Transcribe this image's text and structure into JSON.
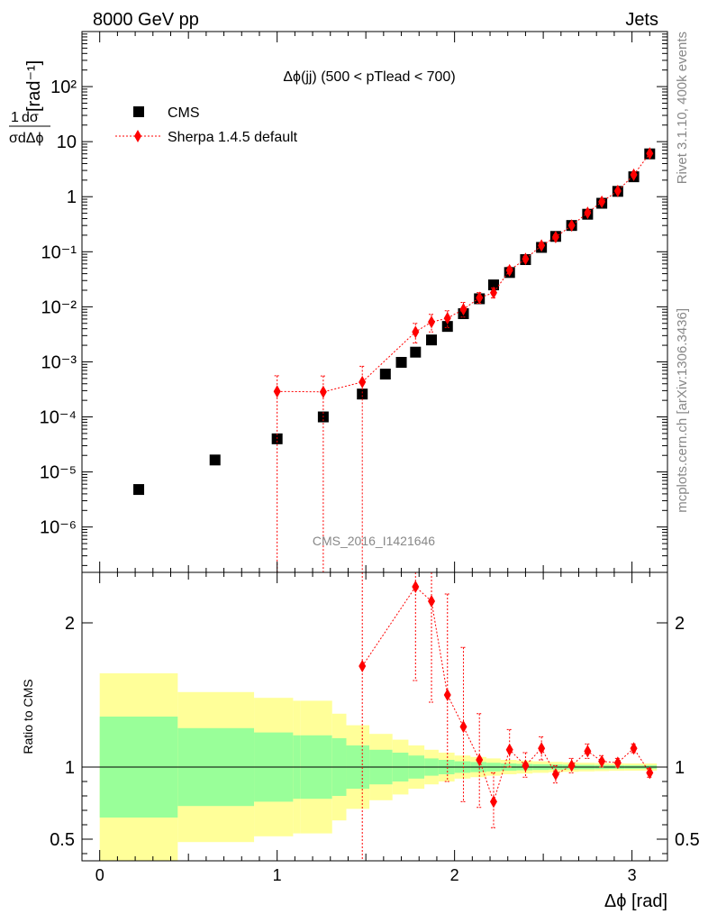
{
  "header": {
    "left": "8000 GeV pp",
    "right": "Jets"
  },
  "side_labels": {
    "rivet": "Rivet 3.1.10,  400k events",
    "mcplots": "mcplots.cern.ch [arXiv:1306.3436]"
  },
  "watermark": "CMS_2016_I1421646",
  "colors": {
    "data": "#000000",
    "mc": "#ff0000",
    "band_inner": "#99ff99",
    "band_outer": "#ffff99"
  },
  "chart_data": [
    {
      "type": "scatter",
      "title": "Δϕ(jj) (500 < pTlead <  700)",
      "ylabel": "1/σ dσ/dΔϕ [rad⁻¹]",
      "y_scale": "log",
      "xlim": [
        -0.1,
        3.2
      ],
      "ylim": [
        1.5e-07,
        1000
      ],
      "y_tick_labels": [
        "10⁻⁶",
        "10⁻⁵",
        "10⁻⁴",
        "10⁻³",
        "10⁻²",
        "10⁻¹",
        "1",
        "10",
        "10²"
      ],
      "legend": [
        "CMS",
        "Sherpa 1.4.5 default"
      ],
      "legend_position": "top-left",
      "series": [
        {
          "name": "CMS",
          "marker": "square",
          "x": [
            0.22,
            0.65,
            1.0,
            1.26,
            1.48,
            1.61,
            1.7,
            1.78,
            1.87,
            1.96,
            2.05,
            2.14,
            2.22,
            2.31,
            2.4,
            2.49,
            2.57,
            2.66,
            2.75,
            2.83,
            2.92,
            3.01,
            3.1
          ],
          "y": [
            4.8e-06,
            1.65e-05,
            4e-05,
            0.0001,
            0.00026,
            0.0006,
            0.00098,
            0.0015,
            0.0025,
            0.0044,
            0.0075,
            0.014,
            0.025,
            0.042,
            0.072,
            0.12,
            0.19,
            0.3,
            0.48,
            0.76,
            1.25,
            2.3,
            6.0
          ]
        },
        {
          "name": "Sherpa 1.4.5 default",
          "marker": "diamond",
          "x": [
            1.0,
            1.26,
            1.48,
            1.78,
            1.87,
            1.96,
            2.05,
            2.14,
            2.22,
            2.31,
            2.4,
            2.49,
            2.57,
            2.66,
            2.75,
            2.83,
            2.92,
            3.01,
            3.1
          ],
          "y": [
            0.00029,
            0.000285,
            0.00043,
            0.0035,
            0.0053,
            0.0062,
            0.009,
            0.0146,
            0.018,
            0.046,
            0.074,
            0.13,
            0.185,
            0.3,
            0.51,
            0.81,
            1.27,
            2.5,
            6.1
          ],
          "err_low": [
            0.00029,
            0.000285,
            0.00043,
            0.0013,
            0.0018,
            0.002,
            0.0025,
            0.003,
            0.0035,
            0.006,
            0.008,
            0.012,
            0.015,
            0.02,
            0.03,
            0.045,
            0.06,
            0.1,
            0.2
          ],
          "err_high": [
            0.00027,
            0.00027,
            0.0004,
            0.0015,
            0.002,
            0.0023,
            0.003,
            0.0035,
            0.004,
            0.007,
            0.009,
            0.014,
            0.017,
            0.023,
            0.035,
            0.05,
            0.07,
            0.12,
            0.25
          ]
        }
      ]
    },
    {
      "type": "scatter",
      "xlabel": "Δϕ [rad]",
      "ylabel": "Ratio to CMS",
      "xlim": [
        -0.1,
        3.2
      ],
      "ylim": [
        0.35,
        2.35
      ],
      "x_tick_labels": [
        "0",
        "1",
        "2",
        "3"
      ],
      "y_tick_labels": [
        "0.5",
        "1",
        "2"
      ],
      "reference_line": 1,
      "bands": {
        "edges": [
          0,
          0.44,
          0.87,
          1.09,
          1.13,
          1.31,
          1.39,
          1.52,
          1.65,
          1.74,
          1.83,
          1.91,
          2.0,
          2.09,
          2.18,
          2.26,
          2.35,
          2.44,
          2.53,
          2.61,
          2.7,
          2.79,
          2.87,
          2.96,
          3.05,
          3.14
        ],
        "inner_half_width": [
          0.35,
          0.27,
          0.24,
          0.22,
          0.22,
          0.2,
          0.15,
          0.12,
          0.1,
          0.08,
          0.06,
          0.05,
          0.04,
          0.035,
          0.03,
          0.025,
          0.022,
          0.02,
          0.018,
          0.016,
          0.015,
          0.014,
          0.013,
          0.012,
          0.012
        ],
        "outer_half_width": [
          0.65,
          0.52,
          0.48,
          0.46,
          0.46,
          0.37,
          0.29,
          0.23,
          0.19,
          0.15,
          0.12,
          0.1,
          0.08,
          0.07,
          0.06,
          0.05,
          0.045,
          0.04,
          0.036,
          0.033,
          0.03,
          0.028,
          0.026,
          0.025,
          0.025
        ]
      },
      "series": [
        {
          "name": "Sherpa 1.4.5 default",
          "marker": "diamond",
          "x": [
            1.48,
            1.78,
            1.87,
            1.96,
            2.05,
            2.14,
            2.22,
            2.31,
            2.4,
            2.49,
            2.57,
            2.66,
            2.75,
            2.83,
            2.92,
            3.01,
            3.1
          ],
          "y": [
            1.7,
            2.25,
            2.15,
            1.5,
            1.28,
            1.05,
            0.76,
            1.12,
            1.01,
            1.13,
            0.95,
            1.01,
            1.11,
            1.04,
            1.03,
            1.13,
            0.96
          ],
          "err_low": [
            1.7,
            0.65,
            0.7,
            0.6,
            0.52,
            0.33,
            0.18,
            0.12,
            0.08,
            0.08,
            0.06,
            0.05,
            0.05,
            0.04,
            0.03,
            0.03,
            0.03
          ],
          "err_high": [
            0.9,
            0.7,
            0.7,
            0.7,
            0.55,
            0.32,
            0.2,
            0.14,
            0.09,
            0.08,
            0.06,
            0.05,
            0.05,
            0.04,
            0.03,
            0.03,
            0.03
          ]
        }
      ]
    }
  ]
}
